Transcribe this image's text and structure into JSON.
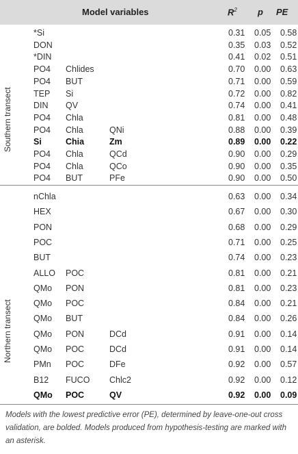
{
  "header": {
    "model_variables": "Model variables",
    "r2": "R",
    "r2_sup": "2",
    "p": "p",
    "pe": "PE"
  },
  "sections": {
    "south": {
      "label": "Southern transect",
      "rows": [
        {
          "v1": "*Si",
          "v2": "",
          "v3": "",
          "r2": "0.31",
          "p": "0.05",
          "pe": "0.58",
          "bold": false
        },
        {
          "v1": "DON",
          "v2": "",
          "v3": "",
          "r2": "0.35",
          "p": "0.03",
          "pe": "0.52",
          "bold": false
        },
        {
          "v1": "*DIN",
          "v2": "",
          "v3": "",
          "r2": "0.41",
          "p": "0.02",
          "pe": "0.51",
          "bold": false
        },
        {
          "v1": "PO4",
          "v2": "Chlides",
          "v3": "",
          "r2": "0.70",
          "p": "0.00",
          "pe": "0.63",
          "bold": false
        },
        {
          "v1": "PO4",
          "v2": "BUT",
          "v3": "",
          "r2": "0.71",
          "p": "0.00",
          "pe": "0.59",
          "bold": false
        },
        {
          "v1": "TEP",
          "v2": "Si",
          "v3": "",
          "r2": "0.72",
          "p": "0.00",
          "pe": "0.82",
          "bold": false
        },
        {
          "v1": "DIN",
          "v2": "QV",
          "v3": "",
          "r2": "0.74",
          "p": "0.00",
          "pe": "0.41",
          "bold": false
        },
        {
          "v1": "PO4",
          "v2": "Chla",
          "v3": "",
          "r2": "0.81",
          "p": "0.00",
          "pe": "0.48",
          "bold": false
        },
        {
          "v1": "PO4",
          "v2": "Chla",
          "v3": "QNi",
          "r2": "0.88",
          "p": "0.00",
          "pe": "0.39",
          "bold": false
        },
        {
          "v1": "Si",
          "v2": "Chia",
          "v3": "Zm",
          "r2": "0.89",
          "p": "0.00",
          "pe": "0.22",
          "bold": true
        },
        {
          "v1": "PO4",
          "v2": "Chla",
          "v3": "QCd",
          "r2": "0.90",
          "p": "0.00",
          "pe": "0.29",
          "bold": false
        },
        {
          "v1": "PO4",
          "v2": "Chla",
          "v3": "QCo",
          "r2": "0.90",
          "p": "0.00",
          "pe": "0.35",
          "bold": false
        },
        {
          "v1": "PO4",
          "v2": "BUT",
          "v3": "PFe",
          "r2": "0.90",
          "p": "0.00",
          "pe": "0.50",
          "bold": false
        }
      ]
    },
    "north": {
      "label": "Northern transect",
      "rows": [
        {
          "v1": "nChla",
          "v2": "",
          "v3": "",
          "r2": "0.63",
          "p": "0.00",
          "pe": "0.34",
          "bold": false
        },
        {
          "v1": "HEX",
          "v2": "",
          "v3": "",
          "r2": "0.67",
          "p": "0.00",
          "pe": "0.30",
          "bold": false
        },
        {
          "v1": "PON",
          "v2": "",
          "v3": "",
          "r2": "0.68",
          "p": "0.00",
          "pe": "0.29",
          "bold": false
        },
        {
          "v1": "POC",
          "v2": "",
          "v3": "",
          "r2": "0.71",
          "p": "0.00",
          "pe": "0.25",
          "bold": false
        },
        {
          "v1": "BUT",
          "v2": "",
          "v3": "",
          "r2": "0.74",
          "p": "0.00",
          "pe": "0.23",
          "bold": false
        },
        {
          "v1": "ALLO",
          "v2": "POC",
          "v3": "",
          "r2": "0.81",
          "p": "0.00",
          "pe": "0.21",
          "bold": false
        },
        {
          "v1": "QMo",
          "v2": "PON",
          "v3": "",
          "r2": "0.81",
          "p": "0.00",
          "pe": "0.23",
          "bold": false
        },
        {
          "v1": "QMo",
          "v2": "POC",
          "v3": "",
          "r2": "0.84",
          "p": "0.00",
          "pe": "0.21",
          "bold": false
        },
        {
          "v1": "QMo",
          "v2": "BUT",
          "v3": "",
          "r2": "0.84",
          "p": "0.00",
          "pe": "0.26",
          "bold": false
        },
        {
          "v1": "QMo",
          "v2": "PON",
          "v3": "DCd",
          "r2": "0.91",
          "p": "0.00",
          "pe": "0.14",
          "bold": false
        },
        {
          "v1": "QMo",
          "v2": "POC",
          "v3": "DCd",
          "r2": "0.91",
          "p": "0.00",
          "pe": "0.14",
          "bold": false
        },
        {
          "v1": "PMn",
          "v2": "POC",
          "v3": "DFe",
          "r2": "0.92",
          "p": "0.00",
          "pe": "0.57",
          "bold": false
        },
        {
          "v1": "B12",
          "v2": "FUCO",
          "v3": "Chlc2",
          "r2": "0.92",
          "p": "0.00",
          "pe": "0.12",
          "bold": false
        },
        {
          "v1": "QMo",
          "v2": "POC",
          "v3": "QV",
          "r2": "0.92",
          "p": "0.00",
          "pe": "0.09",
          "bold": true
        }
      ]
    }
  },
  "footnote": "Models with the lowest predictive error (PE), determined by leave-one-out cross validation, are bolded. Models produced from hypothesis-testing are marked with an asterisk."
}
